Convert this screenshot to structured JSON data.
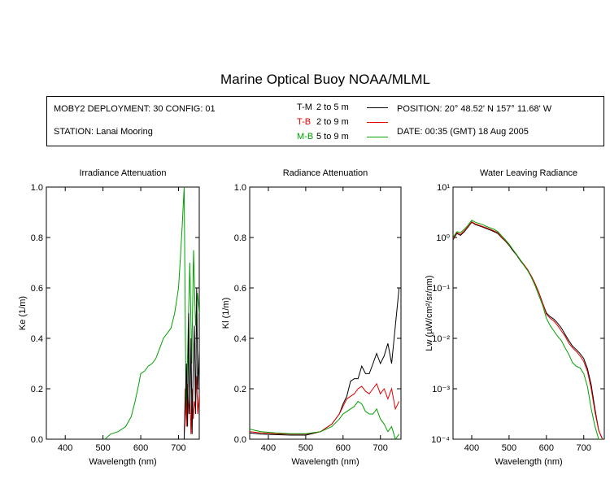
{
  "header": {
    "title": "Marine Optical Buoy NOAA/MLML",
    "deployment": "MOBY2 DEPLOYMENT: 30 CONFIG: 01",
    "station": "STATION: Lanai Mooring",
    "position": "POSITION: 20° 48.52' N   157° 11.68' W",
    "date": "DATE: 00:35 (GMT) 18 Aug 2005"
  },
  "legend": [
    {
      "code": "T-M",
      "range": "2 to 5  m",
      "color": "#000000"
    },
    {
      "code": "T-B",
      "range": "2 to 9  m",
      "color": "#e00000"
    },
    {
      "code": "M-B",
      "range": "5 to 9  m",
      "color": "#00a000"
    }
  ],
  "colors": {
    "T-M": "#000000",
    "T-B": "#e00000",
    "M-B": "#00a000"
  },
  "chart_data": [
    {
      "type": "line",
      "title": "Irradiance Attenuation",
      "xlabel": "Wavelength (nm)",
      "ylabel": "Ke  (1/m)",
      "xlim": [
        350,
        755
      ],
      "ylim": [
        0,
        1.0
      ],
      "xticks": [
        400,
        500,
        600,
        700
      ],
      "yticks": [
        0.0,
        0.2,
        0.4,
        0.6,
        0.8,
        1.0
      ],
      "ytick_labels": [
        "0.0",
        "0.2",
        "0.4",
        "0.6",
        "0.8",
        "1.0"
      ],
      "series": [
        {
          "name": "M-B",
          "x": [
            505,
            520,
            540,
            560,
            575,
            585,
            595,
            600,
            610,
            620,
            630,
            640,
            650,
            660,
            670,
            680,
            690,
            700,
            705,
            710,
            715,
            720,
            725,
            730,
            735,
            740,
            745,
            750,
            755
          ],
          "y": [
            0.0,
            0.02,
            0.03,
            0.05,
            0.09,
            0.15,
            0.22,
            0.26,
            0.27,
            0.29,
            0.3,
            0.32,
            0.36,
            0.4,
            0.42,
            0.44,
            0.5,
            0.6,
            0.72,
            0.85,
            1.0,
            0.1,
            0.4,
            0.7,
            0.3,
            0.75,
            0.45,
            0.58,
            0.5
          ]
        },
        {
          "name": "T-B",
          "x": [
            715,
            718,
            721,
            724,
            727,
            730,
            733,
            736,
            739,
            742,
            745,
            748,
            751,
            755
          ],
          "y": [
            0.0,
            0.2,
            0.05,
            0.22,
            0.1,
            0.18,
            0.02,
            0.2,
            0.08,
            0.15,
            0.12,
            0.25,
            0.1,
            0.18
          ]
        },
        {
          "name": "T-M",
          "x": [
            715,
            718,
            721,
            724,
            727,
            730,
            733,
            736,
            739,
            742,
            745,
            748,
            751,
            755
          ],
          "y": [
            0.0,
            0.15,
            0.3,
            0.05,
            0.5,
            0.1,
            0.4,
            0.02,
            0.3,
            0.45,
            0.1,
            0.6,
            0.2,
            0.35
          ]
        }
      ]
    },
    {
      "type": "line",
      "title": "Radiance Attenuation",
      "xlabel": "Wavelength (nm)",
      "ylabel": "Kl  (1/m)",
      "xlim": [
        350,
        755
      ],
      "ylim": [
        0,
        1.0
      ],
      "xticks": [
        400,
        500,
        600,
        700
      ],
      "yticks": [
        0.0,
        0.2,
        0.4,
        0.6,
        0.8,
        1.0
      ],
      "ytick_labels": [
        "0.0",
        "0.2",
        "0.4",
        "0.6",
        "0.8",
        "1.0"
      ],
      "series": [
        {
          "name": "T-M",
          "x": [
            350,
            380,
            420,
            460,
            500,
            540,
            570,
            590,
            600,
            610,
            620,
            630,
            640,
            650,
            660,
            670,
            680,
            690,
            700,
            710,
            720,
            730,
            740,
            750
          ],
          "y": [
            0.025,
            0.02,
            0.018,
            0.016,
            0.016,
            0.03,
            0.06,
            0.1,
            0.14,
            0.17,
            0.23,
            0.24,
            0.24,
            0.29,
            0.26,
            0.26,
            0.3,
            0.34,
            0.3,
            0.33,
            0.38,
            0.3,
            0.45,
            0.6
          ]
        },
        {
          "name": "T-B",
          "x": [
            350,
            380,
            420,
            460,
            500,
            540,
            570,
            590,
            600,
            610,
            620,
            630,
            640,
            650,
            660,
            670,
            680,
            690,
            700,
            710,
            720,
            730,
            740,
            750
          ],
          "y": [
            0.03,
            0.025,
            0.022,
            0.02,
            0.02,
            0.03,
            0.06,
            0.1,
            0.13,
            0.16,
            0.17,
            0.18,
            0.2,
            0.21,
            0.19,
            0.18,
            0.2,
            0.22,
            0.18,
            0.2,
            0.16,
            0.2,
            0.12,
            0.15
          ]
        },
        {
          "name": "M-B",
          "x": [
            350,
            380,
            420,
            460,
            500,
            540,
            570,
            590,
            600,
            610,
            620,
            630,
            640,
            650,
            660,
            670,
            680,
            690,
            700,
            710,
            720,
            730,
            740,
            750
          ],
          "y": [
            0.04,
            0.03,
            0.025,
            0.022,
            0.022,
            0.03,
            0.05,
            0.08,
            0.1,
            0.11,
            0.12,
            0.13,
            0.15,
            0.14,
            0.11,
            0.1,
            0.1,
            0.12,
            0.08,
            0.06,
            0.03,
            0.05,
            0.0,
            0.02
          ]
        }
      ]
    },
    {
      "type": "line",
      "title": "Water Leaving Radiance",
      "xlabel": "Wavelength (nm)",
      "ylabel": "Lw  (µW/cm²/sr/nm)",
      "yscale": "log",
      "xlim": [
        350,
        755
      ],
      "ylim": [
        0.0001,
        10
      ],
      "xticks": [
        400,
        500,
        600,
        700
      ],
      "yticks": [
        0.0001,
        0.001,
        0.01,
        0.1,
        1,
        10
      ],
      "ytick_labels": [
        "10⁻⁴",
        "10⁻³",
        "10⁻²",
        "10⁻¹",
        "10⁰",
        "10¹"
      ],
      "series": [
        {
          "name": "T-M",
          "x": [
            350,
            360,
            370,
            380,
            390,
            400,
            410,
            420,
            430,
            440,
            450,
            460,
            470,
            480,
            490,
            500,
            510,
            520,
            530,
            540,
            550,
            560,
            570,
            580,
            590,
            600,
            610,
            620,
            630,
            640,
            650,
            660,
            670,
            680,
            690,
            700,
            710,
            720,
            730,
            740,
            750
          ],
          "y": [
            0.9,
            1.2,
            1.1,
            1.3,
            1.6,
            2.0,
            1.8,
            1.7,
            1.6,
            1.5,
            1.4,
            1.3,
            1.2,
            1.0,
            0.85,
            0.7,
            0.55,
            0.45,
            0.35,
            0.28,
            0.22,
            0.17,
            0.12,
            0.08,
            0.05,
            0.032,
            0.027,
            0.024,
            0.02,
            0.016,
            0.012,
            0.009,
            0.007,
            0.006,
            0.005,
            0.004,
            0.0025,
            0.0012,
            0.0004,
            0.00015,
            0.0001
          ]
        },
        {
          "name": "T-B",
          "x": [
            350,
            360,
            370,
            380,
            390,
            400,
            410,
            420,
            430,
            440,
            450,
            460,
            470,
            480,
            490,
            500,
            510,
            520,
            530,
            540,
            550,
            560,
            570,
            580,
            590,
            600,
            610,
            620,
            630,
            640,
            650,
            660,
            670,
            680,
            690,
            700,
            710,
            720,
            730,
            740,
            750
          ],
          "y": [
            0.95,
            1.25,
            1.15,
            1.35,
            1.65,
            2.05,
            1.85,
            1.75,
            1.65,
            1.55,
            1.45,
            1.35,
            1.25,
            1.02,
            0.87,
            0.72,
            0.57,
            0.46,
            0.36,
            0.29,
            0.23,
            0.17,
            0.12,
            0.08,
            0.05,
            0.03,
            0.025,
            0.022,
            0.018,
            0.014,
            0.011,
            0.008,
            0.0065,
            0.0055,
            0.0045,
            0.0035,
            0.0022,
            0.001,
            0.00035,
            0.00015,
            0.0001
          ]
        },
        {
          "name": "M-B",
          "x": [
            350,
            360,
            370,
            380,
            390,
            400,
            410,
            420,
            430,
            440,
            450,
            460,
            470,
            480,
            490,
            500,
            510,
            520,
            530,
            540,
            550,
            560,
            570,
            580,
            590,
            600,
            610,
            620,
            630,
            640,
            650,
            660,
            670,
            680,
            690,
            700,
            710,
            720,
            730,
            740,
            750
          ],
          "y": [
            1.0,
            1.3,
            1.25,
            1.45,
            1.75,
            2.2,
            2.0,
            1.9,
            1.8,
            1.65,
            1.55,
            1.45,
            1.3,
            1.08,
            0.9,
            0.74,
            0.58,
            0.46,
            0.36,
            0.28,
            0.22,
            0.16,
            0.11,
            0.07,
            0.045,
            0.025,
            0.018,
            0.014,
            0.011,
            0.009,
            0.0065,
            0.0048,
            0.0033,
            0.0028,
            0.0026,
            0.002,
            0.0011,
            0.0004,
            0.00018,
            0.0001,
            0.0001
          ]
        }
      ]
    }
  ]
}
